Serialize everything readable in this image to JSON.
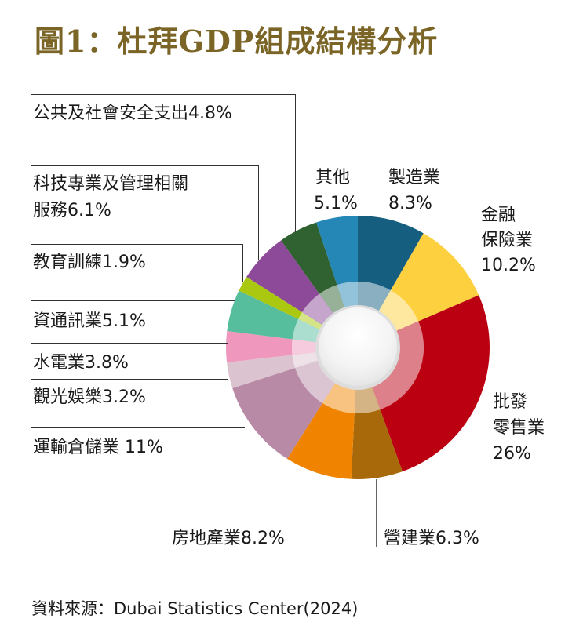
{
  "title": "圖1：杜拜GDP組成結構分析",
  "source": "資料來源：Dubai Statistics Center(2024)",
  "chart_data": {
    "type": "pie",
    "subtype": "donut",
    "title": "圖1：杜拜GDP組成結構分析",
    "unit": "%",
    "start_angle": "12 o'clock, clockwise",
    "categories": [
      "製造業",
      "金融保險業",
      "批發零售業",
      "營建業",
      "房地產業",
      "運輸倉儲業",
      "觀光娛樂",
      "水電業",
      "資通訊業",
      "教育訓練",
      "科技專業及管理相關服務",
      "公共及社會安全支出",
      "其他"
    ],
    "values": [
      8.3,
      10.2,
      26,
      6.3,
      8.2,
      11,
      3.2,
      3.8,
      5.1,
      1.9,
      6.1,
      4.8,
      5.1
    ],
    "colors": [
      "#155e80",
      "#fdd03f",
      "#bb0012",
      "#a8690a",
      "#f08400",
      "#b88aa6",
      "#dcc3d0",
      "#ef97bd",
      "#56bd9d",
      "#a9c80f",
      "#8d4a98",
      "#2f6131",
      "#2587b6"
    ],
    "source": "Dubai Statistics Center(2024)"
  },
  "labels": {
    "manufacturing": {
      "line1": "製造業",
      "line2": "8.3%"
    },
    "finance": {
      "line1": "金融",
      "line2": "保險業",
      "line3": "10.2%"
    },
    "wholesale": {
      "line1": "批發",
      "line2": "零售業",
      "line3": "26%"
    },
    "construction": "營建業6.3%",
    "realestate": "房地產業8.2%",
    "transport": "運輸倉儲業 11%",
    "tourism": "觀光娛樂3.2%",
    "utilities": "水電業3.8%",
    "ict": "資通訊業5.1%",
    "education": "教育訓練1.9%",
    "tech": {
      "line1": "科技專業及管理相關",
      "line2": "服務6.1%"
    },
    "public": "公共及社會安全支出4.8%",
    "other": {
      "line1": "其他",
      "line2": "5.1%"
    }
  }
}
